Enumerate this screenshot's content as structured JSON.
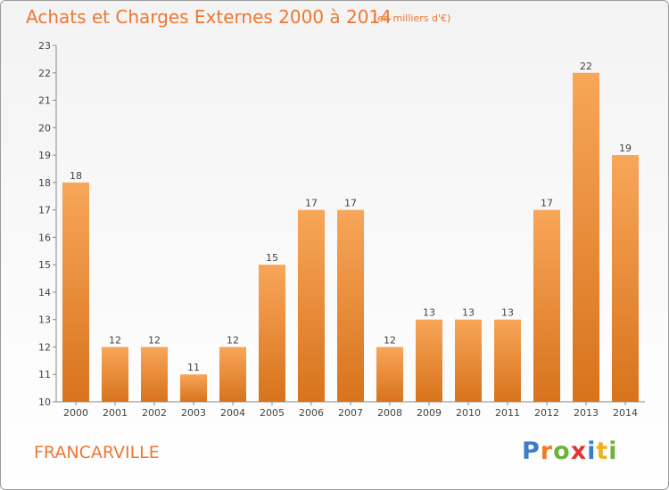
{
  "header": {
    "title": "Achats et Charges Externes 2000 à 2014",
    "unit": "(en milliers d'€)"
  },
  "footer": {
    "city": "FRANCARVILLE",
    "logo_letters": [
      "P",
      "r",
      "o",
      "x",
      "i",
      "t",
      "i"
    ],
    "logo_colors": [
      "#3a7ec9",
      "#f07c21",
      "#6bb33a",
      "#e3342f",
      "#3a7ec9",
      "#f0b021",
      "#6bb33a"
    ]
  },
  "chart_data": {
    "type": "bar",
    "title": "Achats et Charges Externes 2000 à 2014",
    "subtitle": "(en milliers d'€)",
    "categories": [
      "2000",
      "2001",
      "2002",
      "2003",
      "2004",
      "2005",
      "2006",
      "2007",
      "2008",
      "2009",
      "2010",
      "2011",
      "2012",
      "2013",
      "2014"
    ],
    "values": [
      18,
      12,
      12,
      11,
      12,
      15,
      17,
      17,
      12,
      13,
      13,
      13,
      17,
      22,
      19
    ],
    "data_labels": [
      "18",
      "12",
      "12",
      "11",
      "12",
      "15",
      "17",
      "17",
      "12",
      "13",
      "13",
      "13",
      "17",
      "22",
      "19"
    ],
    "yticks": [
      "10",
      "11",
      "12",
      "13",
      "14",
      "15",
      "16",
      "17",
      "18",
      "19",
      "20",
      "21",
      "22",
      "23"
    ],
    "ylim": [
      10,
      23
    ],
    "grid": false,
    "bar_color": "#f08a33"
  }
}
